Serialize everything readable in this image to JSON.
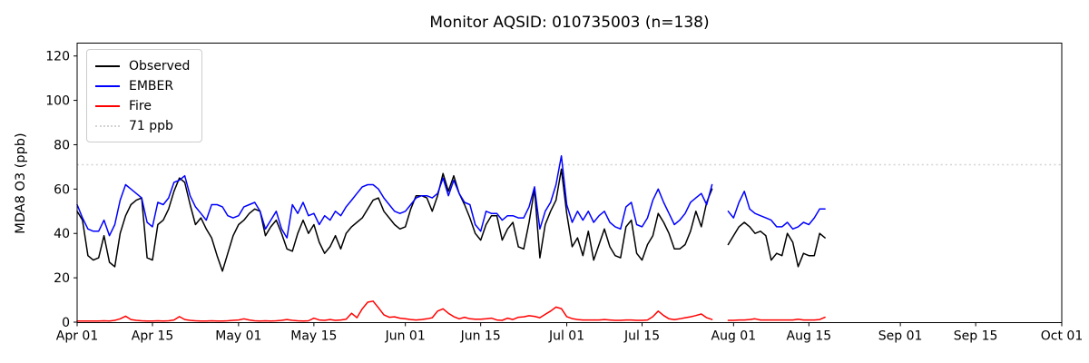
{
  "title": "Monitor AQSID: 010735003 (n=138)",
  "ylabel": "MDA8 O3 (ppb)",
  "colors": {
    "observed": "#000000",
    "ember": "#0000ff",
    "fire": "#ff0000",
    "threshold": "#d3d3d3",
    "axis": "#000000",
    "background": "#ffffff"
  },
  "legend": {
    "items": [
      {
        "label": "Observed",
        "color": "#000000",
        "style": "solid"
      },
      {
        "label": "EMBER",
        "color": "#0000ff",
        "style": "solid"
      },
      {
        "label": "Fire",
        "color": "#ff0000",
        "style": "solid"
      },
      {
        "label": "71 ppb",
        "color": "#d3d3d3",
        "style": "dotted"
      }
    ]
  },
  "chart_data": {
    "type": "line",
    "title": "Monitor AQSID: 010735003 (n=138)",
    "xlabel": "",
    "ylabel": "MDA8 O3 (ppb)",
    "ylim": [
      0,
      126
    ],
    "yticks": [
      0,
      20,
      40,
      60,
      80,
      100,
      120
    ],
    "xticks": [
      "Apr 01",
      "Apr 15",
      "May 01",
      "May 15",
      "Jun 01",
      "Jun 15",
      "Jul 01",
      "Jul 15",
      "Aug 01",
      "Aug 15",
      "Sep 01",
      "Sep 15",
      "Oct 01"
    ],
    "grid": false,
    "legend_position": "upper left",
    "threshold": {
      "label": "71 ppb",
      "value": 71,
      "color": "#d3d3d3",
      "style": "dotted"
    },
    "n_points": 138,
    "dates": [
      "Apr 01",
      "Apr 02",
      "Apr 03",
      "Apr 04",
      "Apr 05",
      "Apr 06",
      "Apr 07",
      "Apr 08",
      "Apr 09",
      "Apr 10",
      "Apr 11",
      "Apr 12",
      "Apr 13",
      "Apr 14",
      "Apr 15",
      "Apr 16",
      "Apr 17",
      "Apr 18",
      "Apr 19",
      "Apr 20",
      "Apr 21",
      "Apr 22",
      "Apr 23",
      "Apr 24",
      "Apr 25",
      "Apr 26",
      "Apr 27",
      "Apr 28",
      "Apr 29",
      "Apr 30",
      "May 01",
      "May 02",
      "May 03",
      "May 04",
      "May 05",
      "May 06",
      "May 07",
      "May 08",
      "May 09",
      "May 10",
      "May 11",
      "May 12",
      "May 13",
      "May 14",
      "May 15",
      "May 16",
      "May 17",
      "May 18",
      "May 19",
      "May 20",
      "May 21",
      "May 22",
      "May 23",
      "May 24",
      "May 25",
      "May 26",
      "May 27",
      "May 28",
      "May 29",
      "May 30",
      "May 31",
      "Jun 01",
      "Jun 02",
      "Jun 03",
      "Jun 04",
      "Jun 05",
      "Jun 06",
      "Jun 07",
      "Jun 08",
      "Jun 09",
      "Jun 10",
      "Jun 11",
      "Jun 12",
      "Jun 13",
      "Jun 14",
      "Jun 15",
      "Jun 16",
      "Jun 17",
      "Jun 18",
      "Jun 19",
      "Jun 20",
      "Jun 21",
      "Jun 22",
      "Jun 23",
      "Jun 24",
      "Jun 25",
      "Jun 26",
      "Jun 27",
      "Jun 28",
      "Jun 29",
      "Jun 30",
      "Jul 01",
      "Jul 02",
      "Jul 03",
      "Jul 04",
      "Jul 05",
      "Jul 06",
      "Jul 07",
      "Jul 08",
      "Jul 09",
      "Jul 10",
      "Jul 11",
      "Jul 12",
      "Jul 13",
      "Jul 14",
      "Jul 15",
      "Jul 16",
      "Jul 17",
      "Jul 18",
      "Jul 19",
      "Jul 20",
      "Jul 21",
      "Jul 22",
      "Jul 23",
      "Jul 24",
      "Jul 25",
      "Jul 26",
      "Jul 27",
      "Jul 28",
      "Jul 29",
      "Jul 30",
      "Jul 31",
      "Aug 01",
      "Aug 02",
      "Aug 03",
      "Aug 04",
      "Aug 05",
      "Aug 06",
      "Aug 07",
      "Aug 08",
      "Aug 09",
      "Aug 10",
      "Aug 11",
      "Aug 12",
      "Aug 13",
      "Aug 14",
      "Aug 15",
      "Aug 16",
      "Aug 17",
      "Aug 18"
    ],
    "series": [
      {
        "name": "Observed",
        "color": "#000000",
        "values": [
          50,
          46,
          30,
          28,
          29,
          39,
          27,
          25,
          40,
          48,
          53,
          55,
          56,
          29,
          28,
          44,
          46,
          51,
          59,
          65,
          63,
          53,
          44,
          47,
          42,
          38,
          30,
          23,
          31,
          39,
          44,
          46,
          49,
          51,
          50,
          39,
          43,
          46,
          40,
          33,
          32,
          40,
          46,
          40,
          44,
          36,
          31,
          34,
          39,
          33,
          40,
          43,
          45,
          47,
          51,
          55,
          56,
          50,
          47,
          44,
          42,
          43,
          51,
          57,
          57,
          56,
          50,
          57,
          67,
          59,
          66,
          58,
          53,
          47,
          40,
          37,
          44,
          48,
          48,
          37,
          42,
          45,
          34,
          33,
          45,
          60,
          29,
          44,
          50,
          55,
          69,
          49,
          34,
          38,
          30,
          41,
          28,
          35,
          42,
          34,
          30,
          29,
          43,
          46,
          31,
          28,
          35,
          39,
          49,
          45,
          40,
          33,
          33,
          35,
          41,
          50,
          43,
          54,
          60,
          null,
          null,
          35,
          39,
          43,
          45,
          43,
          40,
          41,
          39,
          28,
          31,
          30,
          40,
          36,
          25,
          31,
          30,
          30,
          40,
          38
        ]
      },
      {
        "name": "EMBER",
        "color": "#0000ff",
        "values": [
          53,
          47,
          42,
          41,
          41,
          46,
          39,
          44,
          55,
          62,
          60,
          58,
          56,
          45,
          43,
          54,
          53,
          56,
          63,
          64,
          66,
          57,
          52,
          49,
          46,
          53,
          53,
          52,
          48,
          47,
          48,
          52,
          53,
          54,
          50,
          42,
          46,
          50,
          42,
          38,
          53,
          49,
          54,
          48,
          49,
          44,
          48,
          46,
          50,
          48,
          52,
          55,
          58,
          61,
          62,
          62,
          60,
          56,
          53,
          50,
          49,
          50,
          53,
          56,
          57,
          57,
          56,
          58,
          65,
          57,
          64,
          58,
          54,
          53,
          44,
          41,
          50,
          49,
          49,
          46,
          48,
          48,
          47,
          47,
          52,
          61,
          42,
          50,
          54,
          62,
          75,
          53,
          45,
          50,
          46,
          50,
          45,
          48,
          50,
          45,
          43,
          42,
          52,
          54,
          44,
          43,
          47,
          55,
          60,
          54,
          49,
          44,
          46,
          49,
          54,
          56,
          58,
          53,
          62,
          null,
          null,
          50,
          47,
          54,
          59,
          51,
          49,
          48,
          47,
          46,
          43,
          43,
          45,
          42,
          43,
          45,
          44,
          47,
          51,
          51
        ]
      },
      {
        "name": "Fire",
        "color": "#ff0000",
        "values": [
          0.5,
          0.5,
          0.5,
          0.5,
          0.5,
          0.6,
          0.5,
          0.8,
          1.5,
          2.7,
          1.2,
          0.8,
          0.6,
          0.5,
          0.5,
          0.6,
          0.5,
          0.6,
          1.0,
          2.5,
          1.2,
          0.8,
          0.6,
          0.5,
          0.5,
          0.6,
          0.5,
          0.5,
          0.6,
          0.8,
          1.0,
          1.5,
          1.0,
          0.6,
          0.5,
          0.6,
          0.5,
          0.6,
          0.8,
          1.2,
          0.8,
          0.6,
          0.5,
          0.6,
          1.8,
          1.0,
          0.8,
          1.2,
          0.8,
          1.0,
          1.3,
          4.0,
          2.0,
          6.0,
          9.0,
          9.5,
          6.5,
          3.3,
          2.2,
          2.4,
          1.8,
          1.5,
          1.2,
          1.0,
          1.2,
          1.5,
          2.0,
          5.0,
          6.0,
          4.0,
          2.5,
          1.5,
          2.2,
          1.5,
          1.3,
          1.3,
          1.5,
          1.8,
          1.0,
          0.8,
          1.8,
          1.2,
          2.2,
          2.4,
          2.9,
          2.6,
          2.0,
          3.5,
          5.0,
          6.8,
          6.1,
          2.5,
          1.6,
          1.2,
          1.0,
          1.0,
          1.0,
          1.0,
          1.2,
          1.0,
          0.8,
          0.8,
          1.0,
          1.0,
          0.8,
          0.8,
          1.0,
          2.5,
          5.0,
          3.0,
          1.5,
          1.1,
          1.5,
          2.0,
          2.4,
          3.0,
          3.7,
          2.0,
          1.2,
          null,
          null,
          0.8,
          0.8,
          1.0,
          1.0,
          1.2,
          1.5,
          1.0,
          1.0,
          1.0,
          1.0,
          1.0,
          1.0,
          1.0,
          1.3,
          1.0,
          1.0,
          1.0,
          1.2,
          2.2
        ]
      }
    ]
  }
}
